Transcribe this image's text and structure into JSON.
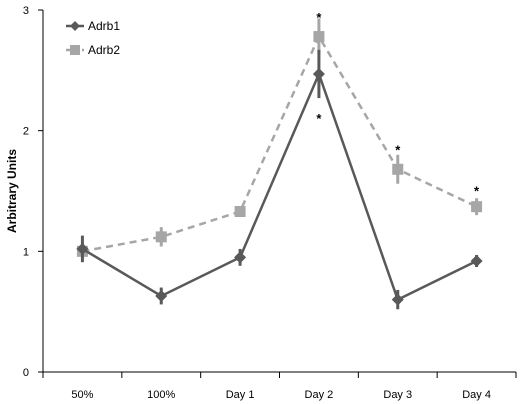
{
  "chart_data": {
    "type": "line",
    "categories": [
      "50%",
      "100%",
      "Day 1",
      "Day 2",
      "Day 3",
      "Day 4"
    ],
    "ylabel": "Arbitrary Units",
    "ylim": [
      0,
      3
    ],
    "yticks": [
      "0",
      "1",
      "2",
      "3"
    ],
    "grid": false,
    "legend": "top-left",
    "series": [
      {
        "name": "Adrb1",
        "color": "#595959",
        "marker": "diamond",
        "line": "solid",
        "values": [
          1.02,
          0.63,
          0.95,
          2.47,
          0.6,
          0.92
        ],
        "errors": [
          0.11,
          0.07,
          0.07,
          0.2,
          0.08,
          0.05
        ]
      },
      {
        "name": "Adrb2",
        "color": "#a6a6a6",
        "marker": "square",
        "line": "dashed",
        "values": [
          1.0,
          1.12,
          1.33,
          2.78,
          1.68,
          1.37
        ],
        "errors": [
          0.06,
          0.08,
          0.03,
          0.15,
          0.12,
          0.07
        ]
      }
    ],
    "annotations": [
      {
        "text": "*",
        "category_index": 3,
        "y": 2.96,
        "series": "Adrb2"
      },
      {
        "text": "*",
        "category_index": 3,
        "y": 2.12,
        "series": "Adrb1"
      },
      {
        "text": "*",
        "category_index": 4,
        "y": 1.86,
        "series": "Adrb2"
      },
      {
        "text": "*",
        "category_index": 5,
        "y": 1.52,
        "series": "Adrb2"
      }
    ]
  }
}
